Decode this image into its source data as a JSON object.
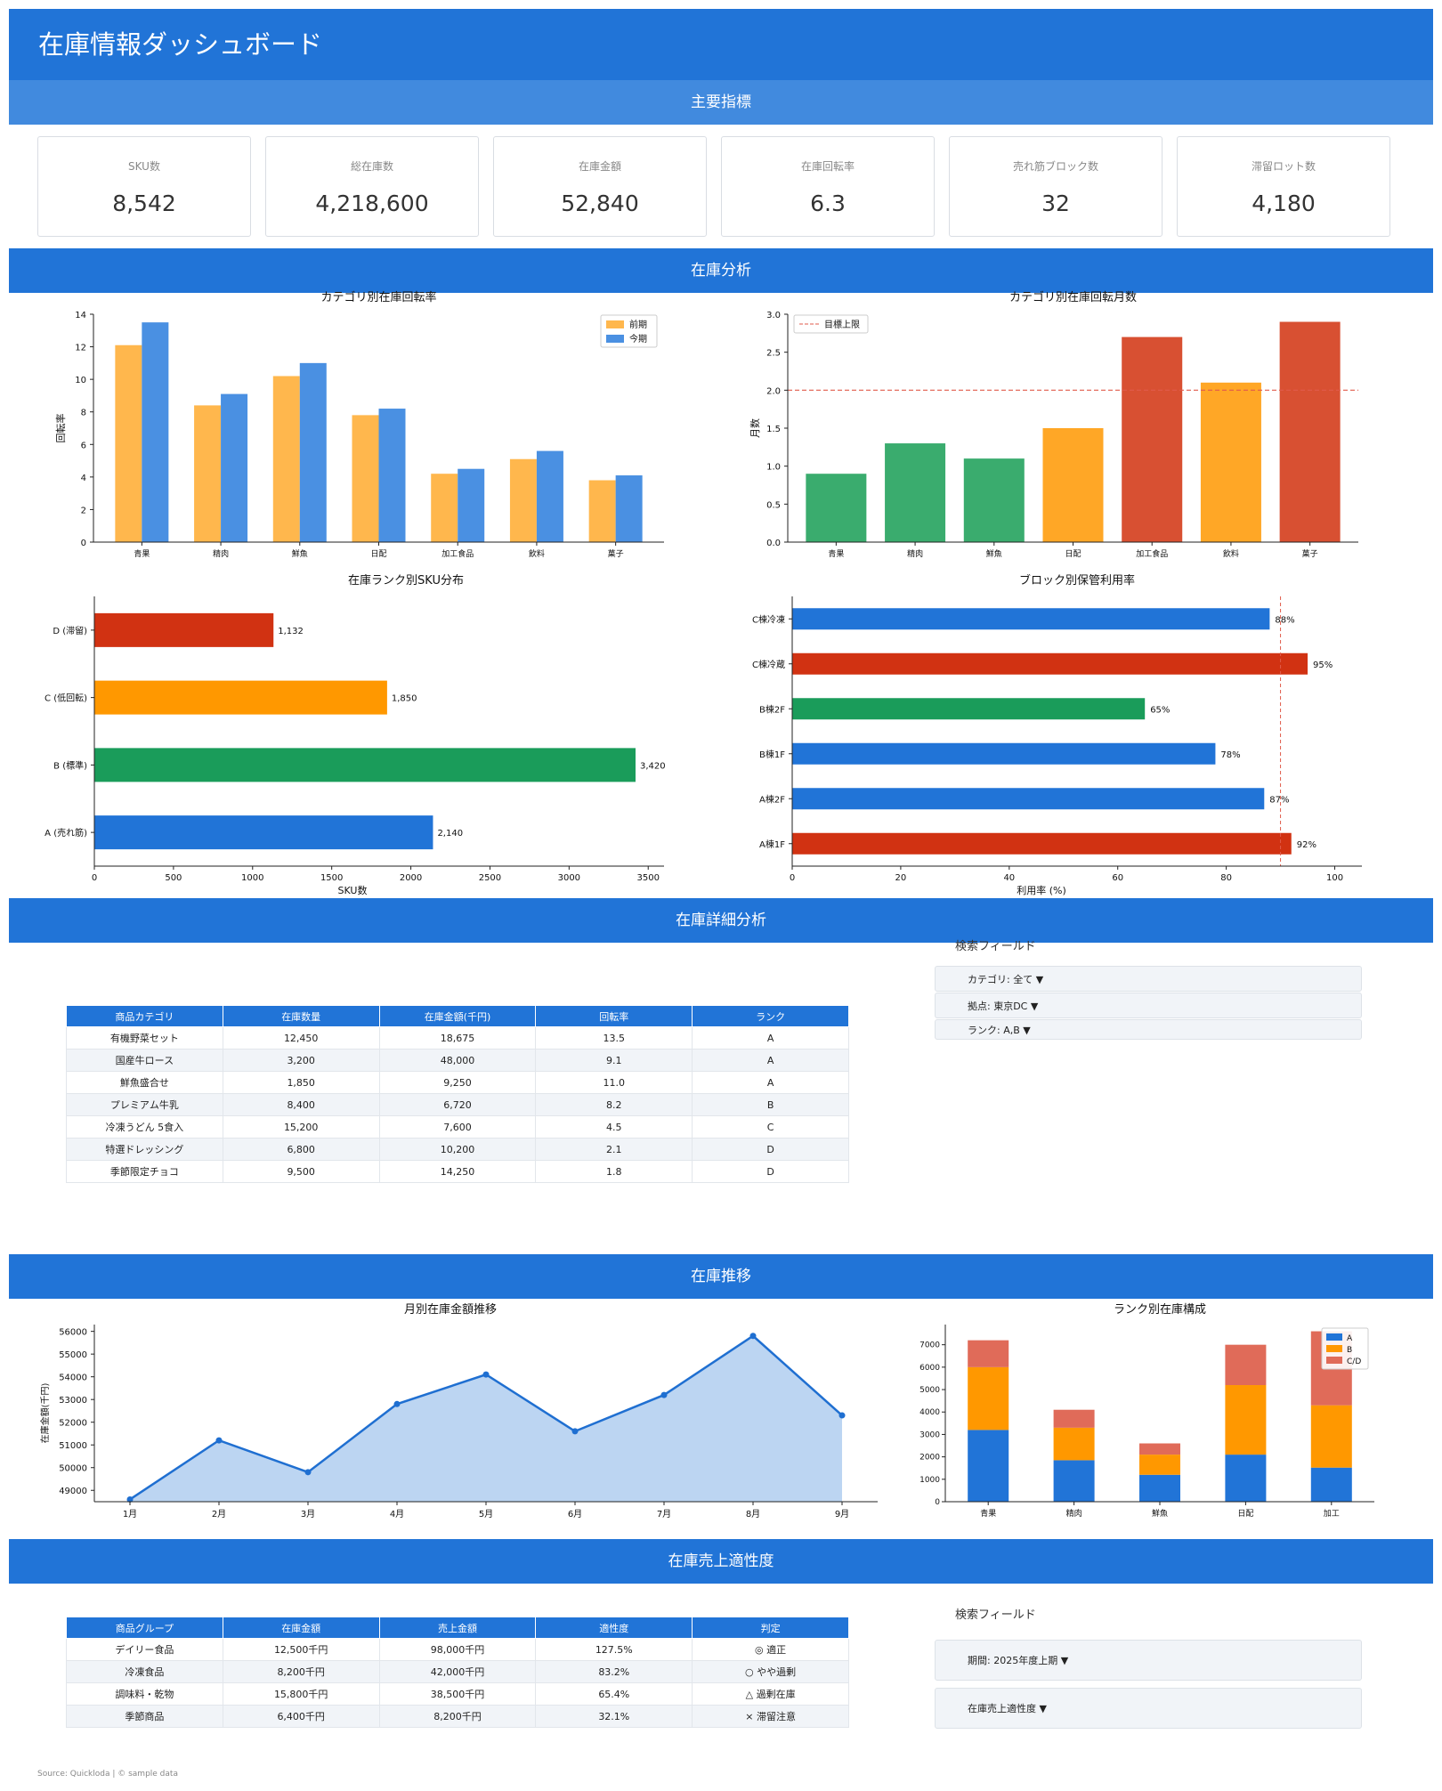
{
  "header": {
    "title": "在庫情報ダッシュボード"
  },
  "sections": {
    "kpi": "主要指標",
    "analysis": "在庫分析",
    "detail": "在庫詳細分析",
    "trend": "在庫推移",
    "fit": "在庫売上適性度"
  },
  "kpis": [
    {
      "label": "SKU数",
      "value": "8,542"
    },
    {
      "label": "総在庫数",
      "value": "4,218,600"
    },
    {
      "label": "在庫金額",
      "value": "52,840"
    },
    {
      "label": "在庫回転率",
      "value": "6.3"
    },
    {
      "label": "売れ筋ブロック数",
      "value": "32"
    },
    {
      "label": "滞留ロット数",
      "value": "4,180"
    }
  ],
  "chart_data": [
    {
      "type": "bar",
      "title": "カテゴリ別在庫回転率",
      "ylabel": "回転率",
      "categories": [
        "青果",
        "精肉",
        "鮮魚",
        "日配",
        "加工食品",
        "飲料",
        "菓子"
      ],
      "series": [
        {
          "name": "前期",
          "values": [
            12.1,
            8.4,
            10.2,
            7.8,
            4.2,
            5.1,
            3.8
          ],
          "color": "#ffb74d"
        },
        {
          "name": "今期",
          "values": [
            13.5,
            9.1,
            11.0,
            8.2,
            4.5,
            5.6,
            4.1
          ],
          "color": "#4a90e2"
        }
      ],
      "ylim": [
        0,
        14
      ],
      "yticks": [
        0,
        2,
        4,
        6,
        8,
        10,
        12,
        14
      ],
      "legend": "top-right"
    },
    {
      "type": "bar",
      "title": "カテゴリ別在庫回転月数",
      "ylabel": "月数",
      "categories": [
        "青果",
        "精肉",
        "鮮魚",
        "日配",
        "加工食品",
        "飲料",
        "菓子"
      ],
      "values": [
        0.9,
        1.3,
        1.1,
        1.5,
        2.7,
        2.1,
        2.9
      ],
      "colors": [
        "#3aac6e",
        "#3aac6e",
        "#3aac6e",
        "#ffa726",
        "#d85032",
        "#ffa726",
        "#d85032"
      ],
      "reference_line": {
        "label": "目標上限",
        "value": 2.0,
        "color": "#e05b4b"
      },
      "ylim": [
        0,
        3.0
      ],
      "yticks": [
        "0.0",
        "0.5",
        "1.0",
        "1.5",
        "2.0",
        "2.5",
        "3.0"
      ],
      "legend": "top-left"
    },
    {
      "type": "bar",
      "orientation": "horizontal",
      "title": "在庫ランク別SKU分布",
      "xlabel": "SKU数",
      "categories": [
        "A (売れ筋)",
        "B (標準)",
        "C (低回転)",
        "D (滞留)"
      ],
      "values": [
        2140,
        3420,
        1850,
        1132
      ],
      "value_labels": [
        "2,140",
        "3,420",
        "1,850",
        "1,132"
      ],
      "colors": [
        "#2174d7",
        "#1a9c5a",
        "#ff9800",
        "#d13212"
      ],
      "xlim": [
        0,
        3600
      ],
      "xticks": [
        0,
        500,
        1000,
        1500,
        2000,
        2500,
        3000,
        3500
      ]
    },
    {
      "type": "bar",
      "orientation": "horizontal",
      "title": "ブロック別保管利用率",
      "xlabel": "利用率 (%)",
      "categories": [
        "A棟1F",
        "A棟2F",
        "B棟1F",
        "B棟2F",
        "C棟冷蔵",
        "C棟冷凍"
      ],
      "values": [
        92,
        87,
        78,
        65,
        95,
        88
      ],
      "value_labels": [
        "92%",
        "87%",
        "78%",
        "65%",
        "95%",
        "88%"
      ],
      "colors": [
        "#d13212",
        "#2174d7",
        "#2174d7",
        "#1a9c5a",
        "#d13212",
        "#2174d7"
      ],
      "reference_line": {
        "value": 90,
        "color": "#e05b4b"
      },
      "xlim": [
        0,
        105
      ],
      "xticks": [
        0,
        20,
        40,
        60,
        80,
        100
      ]
    },
    {
      "type": "area",
      "title": "月別在庫金額推移",
      "ylabel": "在庫金額(千円)",
      "x": [
        "1月",
        "2月",
        "3月",
        "4月",
        "5月",
        "6月",
        "7月",
        "8月",
        "9月"
      ],
      "values": [
        48600,
        51200,
        49800,
        52800,
        54100,
        51600,
        53200,
        55800,
        52300
      ],
      "ylim": [
        48500,
        56300
      ],
      "yticks": [
        49000,
        50000,
        51000,
        52000,
        53000,
        54000,
        55000,
        56000
      ],
      "color": "#1f6fd1"
    },
    {
      "type": "bar",
      "stacked": true,
      "title": "ランク別在庫構成",
      "categories": [
        "青果",
        "精肉",
        "鮮魚",
        "日配",
        "加工"
      ],
      "series": [
        {
          "name": "A",
          "values": [
            3200,
            1850,
            1200,
            2100,
            1520
          ],
          "color": "#2174d7"
        },
        {
          "name": "B",
          "values": [
            2800,
            1450,
            900,
            3100,
            2780
          ],
          "color": "#ff9800"
        },
        {
          "name": "C/D",
          "values": [
            1200,
            800,
            500,
            1800,
            3300
          ],
          "color": "#e06b59"
        }
      ],
      "ylim": [
        0,
        7900
      ],
      "yticks": [
        0,
        1000,
        2000,
        3000,
        4000,
        5000,
        6000,
        7000
      ],
      "legend": "top-right"
    }
  ],
  "detail_table": {
    "headers": [
      "商品カテゴリ",
      "在庫数量",
      "在庫金額(千円)",
      "回転率",
      "ランク"
    ],
    "rows": [
      [
        "有機野菜セット",
        "12,450",
        "18,675",
        "13.5",
        "A"
      ],
      [
        "国産牛ロース",
        "3,200",
        "48,000",
        "9.1",
        "A"
      ],
      [
        "鮮魚盛合せ",
        "1,850",
        "9,250",
        "11.0",
        "A"
      ],
      [
        "プレミアム牛乳",
        "8,400",
        "6,720",
        "8.2",
        "B"
      ],
      [
        "冷凍うどん 5食入",
        "15,200",
        "7,600",
        "4.5",
        "C"
      ],
      [
        "特選ドレッシング",
        "6,800",
        "10,200",
        "2.1",
        "D"
      ],
      [
        "季節限定チョコ",
        "9,500",
        "14,250",
        "1.8",
        "D"
      ]
    ]
  },
  "detail_filters": {
    "title": "検索フィールド",
    "items": [
      "カテゴリ: 全て ▼",
      "拠点: 東京DC ▼",
      "ランク: A,B ▼"
    ]
  },
  "fit_table": {
    "headers": [
      "商品グループ",
      "在庫金額",
      "売上金額",
      "適性度",
      "判定"
    ],
    "rows": [
      [
        "デイリー食品",
        "12,500千円",
        "98,000千円",
        "127.5%",
        "◎ 適正"
      ],
      [
        "冷凍食品",
        "8,200千円",
        "42,000千円",
        "83.2%",
        "○ やや過剰"
      ],
      [
        "調味料・乾物",
        "15,800千円",
        "38,500千円",
        "65.4%",
        "△ 過剰在庫"
      ],
      [
        "季節商品",
        "6,400千円",
        "8,200千円",
        "32.1%",
        "× 滞留注意"
      ]
    ]
  },
  "fit_filters": {
    "title": "検索フィールド",
    "items": [
      "期間: 2025年度上期 ▼",
      "在庫売上適性度 ▼"
    ]
  },
  "footer": {
    "source": "Source: Quickloda | © sample data"
  }
}
